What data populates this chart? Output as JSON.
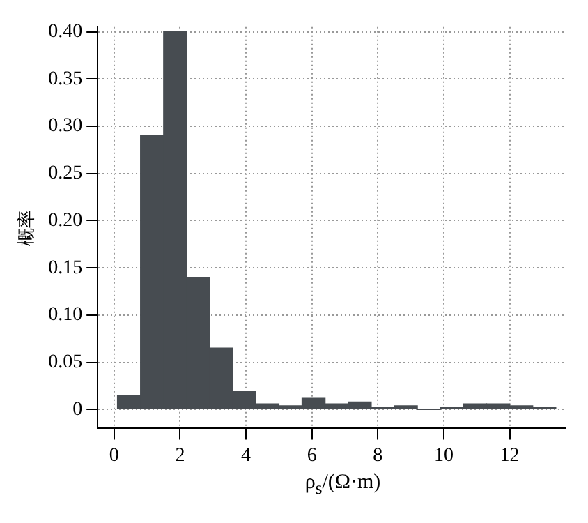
{
  "chart_data": {
    "type": "histogram",
    "xlabel": "ρ$_{s}$/(Ω·m)",
    "ylabel": "概率",
    "color": "#474c51",
    "bins": [
      0.1,
      0.8,
      1.5,
      2.2,
      2.9,
      3.6,
      4.3,
      5.0,
      5.7,
      6.4,
      7.1,
      7.8,
      8.5,
      9.2,
      9.9,
      10.6,
      11.3,
      12.0,
      12.7,
      13.4
    ],
    "values": [
      0.015,
      0.29,
      0.4,
      0.14,
      0.065,
      0.019,
      0.006,
      0.004,
      0.012,
      0.006,
      0.008,
      0.002,
      0.004,
      0,
      0.002,
      0.006,
      0.006,
      0.004,
      0.002
    ],
    "xlim": [
      -0.5,
      13.7
    ],
    "xticks": [
      0,
      2,
      4,
      6,
      8,
      10,
      12
    ],
    "ylim": [
      -0.02,
      0.405
    ],
    "yticks": [
      0,
      {
        "value": 0.05,
        "label": "0.05"
      },
      {
        "value": 0.1,
        "label": "0.10"
      },
      {
        "value": 0.15,
        "label": "0.15"
      },
      {
        "value": 0.2,
        "label": "0.20"
      },
      {
        "value": 0.25,
        "label": "0.25"
      },
      {
        "value": 0.3,
        "label": "0.30"
      },
      {
        "value": 0.35,
        "label": "0.35"
      },
      {
        "value": 0.4,
        "label": "0.40"
      }
    ],
    "grid": true,
    "legend": false
  }
}
